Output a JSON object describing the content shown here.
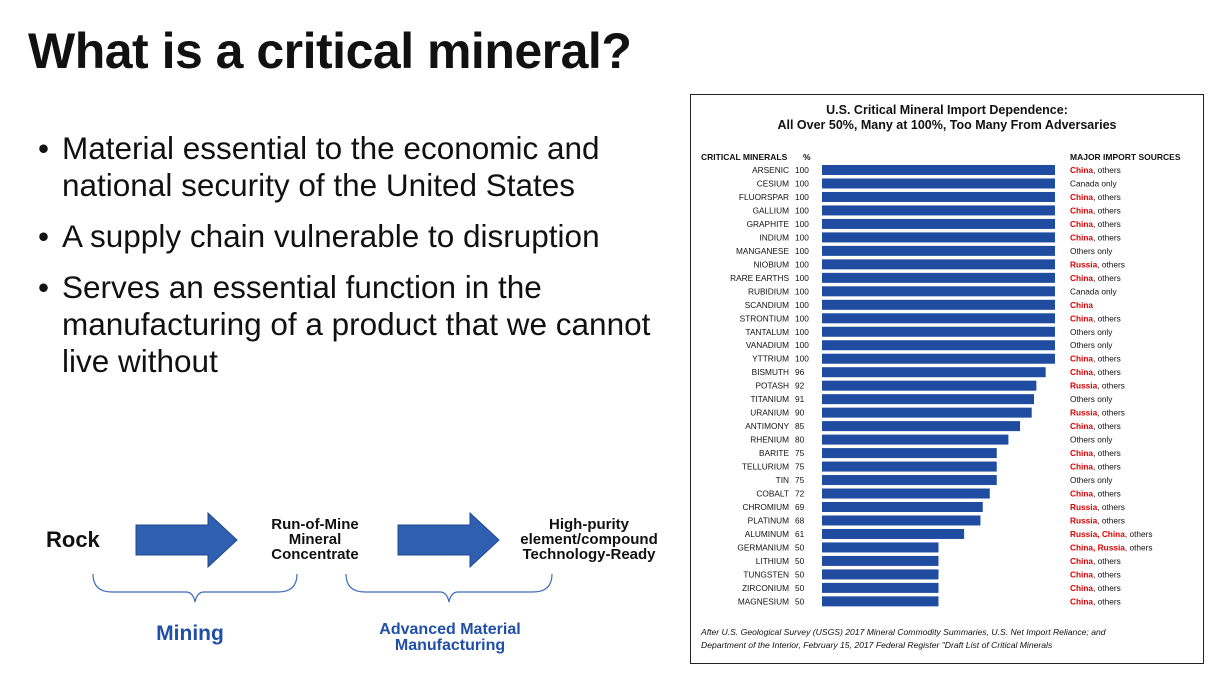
{
  "slide": {
    "title": "What is a critical mineral?",
    "bullets": [
      "Material essential to the economic and national security of the United States",
      "A supply chain vulnerable to disruption",
      "Serves an essential function in the manufacturing of a product that we cannot live without"
    ],
    "bullet_glyph": "•"
  },
  "flow": {
    "step1": "Rock",
    "step2_lines": [
      "Run-of-Mine",
      "Mineral",
      "Concentrate"
    ],
    "step3_lines": [
      "High-purity",
      "element/compound",
      "Technology-Ready"
    ],
    "brace1_label": "Mining",
    "brace2_lines": [
      "Advanced Material",
      "Manufacturing"
    ],
    "arrow_color": "#2f5fb0",
    "label_color": "#1f4fa8"
  },
  "chart_data": {
    "type": "bar",
    "orientation": "horizontal",
    "title": "U.S. Critical Mineral Import Dependence:",
    "subtitle": "All Over 50%, Many at 100%, Too Many From Adversaries",
    "column_headers": {
      "minerals": "CRITICAL MINERALS",
      "percent": "%",
      "sources": "MAJOR IMPORT SOURCES"
    },
    "xlim": [
      0,
      100
    ],
    "bar_color": "#1f4ba0",
    "highlight_color": "#e00000",
    "rows": [
      {
        "mineral": "ARSENIC",
        "value": 100,
        "sources": [
          {
            "text": "China",
            "hl": true
          },
          {
            "text": ", others",
            "hl": false
          }
        ]
      },
      {
        "mineral": "CESIUM",
        "value": 100,
        "sources": [
          {
            "text": "Canada only",
            "hl": false
          }
        ]
      },
      {
        "mineral": "FLUORSPAR",
        "value": 100,
        "sources": [
          {
            "text": "China",
            "hl": true
          },
          {
            "text": ", others",
            "hl": false
          }
        ]
      },
      {
        "mineral": "GALLIUM",
        "value": 100,
        "sources": [
          {
            "text": "China",
            "hl": true
          },
          {
            "text": ", others",
            "hl": false
          }
        ]
      },
      {
        "mineral": "GRAPHITE",
        "value": 100,
        "sources": [
          {
            "text": "China",
            "hl": true
          },
          {
            "text": ", others",
            "hl": false
          }
        ]
      },
      {
        "mineral": "INDIUM",
        "value": 100,
        "sources": [
          {
            "text": "China",
            "hl": true
          },
          {
            "text": ", others",
            "hl": false
          }
        ]
      },
      {
        "mineral": "MANGANESE",
        "value": 100,
        "sources": [
          {
            "text": "Others only",
            "hl": false
          }
        ]
      },
      {
        "mineral": "NIOBIUM",
        "value": 100,
        "sources": [
          {
            "text": "Russia",
            "hl": true
          },
          {
            "text": ", others",
            "hl": false
          }
        ]
      },
      {
        "mineral": "RARE EARTHS",
        "value": 100,
        "sources": [
          {
            "text": "China",
            "hl": true
          },
          {
            "text": ", others",
            "hl": false
          }
        ]
      },
      {
        "mineral": "RUBIDIUM",
        "value": 100,
        "sources": [
          {
            "text": "Canada only",
            "hl": false
          }
        ]
      },
      {
        "mineral": "SCANDIUM",
        "value": 100,
        "sources": [
          {
            "text": "China",
            "hl": true
          }
        ]
      },
      {
        "mineral": "STRONTIUM",
        "value": 100,
        "sources": [
          {
            "text": "China",
            "hl": true
          },
          {
            "text": ", others",
            "hl": false
          }
        ]
      },
      {
        "mineral": "TANTALUM",
        "value": 100,
        "sources": [
          {
            "text": "Others only",
            "hl": false
          }
        ]
      },
      {
        "mineral": "VANADIUM",
        "value": 100,
        "sources": [
          {
            "text": "Others only",
            "hl": false
          }
        ]
      },
      {
        "mineral": "YTTRIUM",
        "value": 100,
        "sources": [
          {
            "text": "China",
            "hl": true
          },
          {
            "text": ", others",
            "hl": false
          }
        ]
      },
      {
        "mineral": "BISMUTH",
        "value": 96,
        "sources": [
          {
            "text": "China",
            "hl": true
          },
          {
            "text": ", others",
            "hl": false
          }
        ]
      },
      {
        "mineral": "POTASH",
        "value": 92,
        "sources": [
          {
            "text": "Russia",
            "hl": true
          },
          {
            "text": ", others",
            "hl": false
          }
        ]
      },
      {
        "mineral": "TITANIUM",
        "value": 91,
        "sources": [
          {
            "text": "Others only",
            "hl": false
          }
        ]
      },
      {
        "mineral": "URANIUM",
        "value": 90,
        "sources": [
          {
            "text": "Russia",
            "hl": true
          },
          {
            "text": ", others",
            "hl": false
          }
        ]
      },
      {
        "mineral": "ANTIMONY",
        "value": 85,
        "sources": [
          {
            "text": "China",
            "hl": true
          },
          {
            "text": ", others",
            "hl": false
          }
        ]
      },
      {
        "mineral": "RHENIUM",
        "value": 80,
        "sources": [
          {
            "text": "Others only",
            "hl": false
          }
        ]
      },
      {
        "mineral": "BARITE",
        "value": 75,
        "sources": [
          {
            "text": "China",
            "hl": true
          },
          {
            "text": ", others",
            "hl": false
          }
        ]
      },
      {
        "mineral": "TELLURIUM",
        "value": 75,
        "sources": [
          {
            "text": "China",
            "hl": true
          },
          {
            "text": ", others",
            "hl": false
          }
        ]
      },
      {
        "mineral": "TIN",
        "value": 75,
        "sources": [
          {
            "text": "Others only",
            "hl": false
          }
        ]
      },
      {
        "mineral": "COBALT",
        "value": 72,
        "sources": [
          {
            "text": "China",
            "hl": true
          },
          {
            "text": ", others",
            "hl": false
          }
        ]
      },
      {
        "mineral": "CHROMIUM",
        "value": 69,
        "sources": [
          {
            "text": "Russia",
            "hl": true
          },
          {
            "text": ", others",
            "hl": false
          }
        ]
      },
      {
        "mineral": "PLATINUM",
        "value": 68,
        "sources": [
          {
            "text": "Russia",
            "hl": true
          },
          {
            "text": ", others",
            "hl": false
          }
        ]
      },
      {
        "mineral": "ALUMINUM",
        "value": 61,
        "sources": [
          {
            "text": "Russia, China",
            "hl": true
          },
          {
            "text": ", others",
            "hl": false
          }
        ]
      },
      {
        "mineral": "GERMANIUM",
        "value": 50,
        "sources": [
          {
            "text": "China, Russia",
            "hl": true
          },
          {
            "text": ", others",
            "hl": false
          }
        ]
      },
      {
        "mineral": "LITHIUM",
        "value": 50,
        "sources": [
          {
            "text": "China",
            "hl": true
          },
          {
            "text": ", others",
            "hl": false
          }
        ]
      },
      {
        "mineral": "TUNGSTEN",
        "value": 50,
        "sources": [
          {
            "text": "China",
            "hl": true
          },
          {
            "text": ", others",
            "hl": false
          }
        ]
      },
      {
        "mineral": "ZIRCONIUM",
        "value": 50,
        "sources": [
          {
            "text": "China",
            "hl": true
          },
          {
            "text": ", others",
            "hl": false
          }
        ]
      },
      {
        "mineral": "MAGNESIUM",
        "value": 50,
        "sources": [
          {
            "text": "China",
            "hl": true
          },
          {
            "text": ", others",
            "hl": false
          }
        ]
      }
    ],
    "note_lines": [
      "After U.S. Geological Survey (USGS) 2017 Mineral Commodity Summaries, U.S. Net Import Reliance; and",
      "Department of the Interior, February 15, 2017 Federal Register \"Draft List of Critical Minerals"
    ]
  }
}
